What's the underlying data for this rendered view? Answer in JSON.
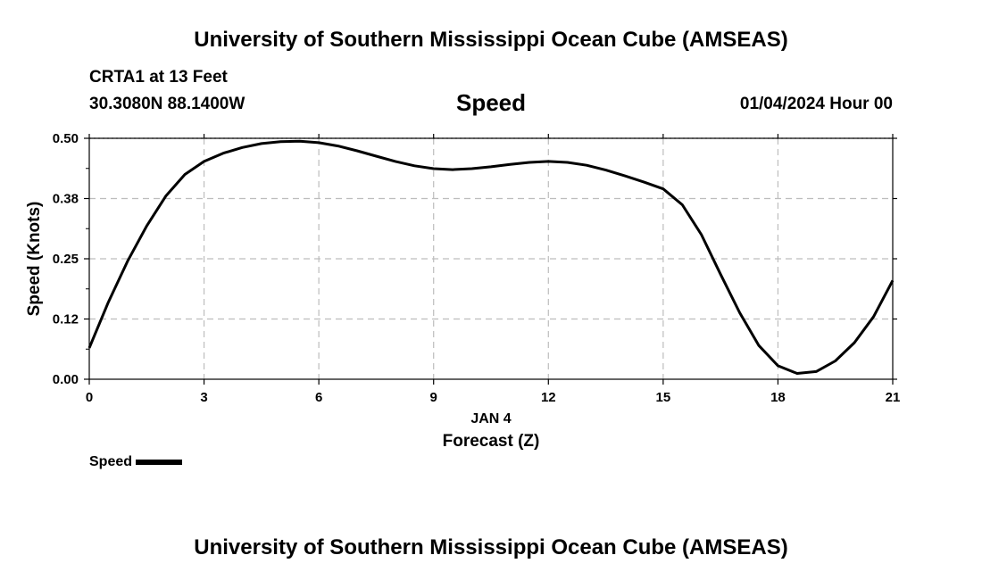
{
  "header": {
    "top_title": "University of Southern Mississippi Ocean Cube (AMSEAS)",
    "bottom_title": "University of Southern Mississippi Ocean Cube (AMSEAS)",
    "station": "CRTA1 at 13 Feet",
    "location": "30.3080N  88.1400W",
    "datetime": "01/04/2024 Hour 00"
  },
  "chart_data": {
    "type": "line",
    "title": "Speed",
    "xlabel": "Forecast (Z)",
    "xsublabel": "JAN 4",
    "ylabel": "Speed (Knots)",
    "xlim": [
      0,
      21
    ],
    "ylim": [
      0,
      0.5
    ],
    "xticks": [
      0,
      3,
      6,
      9,
      12,
      15,
      18,
      21
    ],
    "xtick_labels": [
      "0",
      "3",
      "6",
      "9",
      "12",
      "15",
      "18",
      "21"
    ],
    "yticks": [
      0,
      0.125,
      0.25,
      0.375,
      0.5
    ],
    "ytick_labels": [
      "0.00",
      "0.12",
      "0.25",
      "0.38",
      "0.50"
    ],
    "grid": true,
    "legend": "bottom-left",
    "series": [
      {
        "name": "Speed",
        "color": "#000000",
        "x": [
          0,
          0.5,
          1,
          1.5,
          2,
          2.5,
          3,
          3.5,
          4,
          4.5,
          5,
          5.5,
          6,
          6.5,
          7,
          7.5,
          8,
          8.5,
          9,
          9.5,
          10,
          10.5,
          11,
          11.5,
          12,
          12.5,
          13,
          13.5,
          14,
          14.5,
          15,
          15.5,
          16,
          16.5,
          17,
          17.5,
          18,
          18.5,
          19,
          19.5,
          20,
          20.5,
          21
        ],
        "values": [
          0.065,
          0.16,
          0.245,
          0.318,
          0.38,
          0.425,
          0.452,
          0.469,
          0.481,
          0.489,
          0.493,
          0.494,
          0.491,
          0.484,
          0.474,
          0.463,
          0.452,
          0.443,
          0.437,
          0.435,
          0.437,
          0.441,
          0.446,
          0.45,
          0.452,
          0.45,
          0.444,
          0.434,
          0.422,
          0.409,
          0.395,
          0.362,
          0.3,
          0.218,
          0.138,
          0.07,
          0.028,
          0.012,
          0.016,
          0.038,
          0.076,
          0.13,
          0.205
        ]
      }
    ]
  }
}
